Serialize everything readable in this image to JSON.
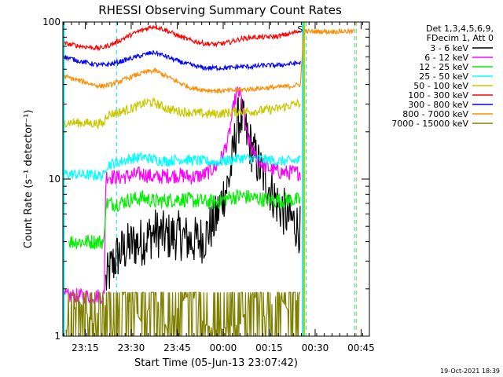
{
  "chart_data": {
    "type": "line",
    "title": "RHESSI Observing Summary Count Rates",
    "xlabel": "Start Time (05-Jun-13 23:07:42)",
    "ylabel": "Count Rate (s⁻¹ detector⁻¹)",
    "yscale": "log",
    "ylim": [
      1,
      100
    ],
    "xlim_minutes": [
      0,
      100
    ],
    "y_ticks": [
      {
        "value": 1,
        "label": "1"
      },
      {
        "value": 10,
        "label": "10"
      },
      {
        "value": 100,
        "label": "100"
      }
    ],
    "x_ticks": [
      {
        "minute": 7.3,
        "label": "23:15"
      },
      {
        "minute": 22.3,
        "label": "23:30"
      },
      {
        "minute": 37.3,
        "label": "23:45"
      },
      {
        "minute": 52.3,
        "label": "00:00"
      },
      {
        "minute": 67.3,
        "label": "00:15"
      },
      {
        "minute": 82.3,
        "label": "00:30"
      },
      {
        "minute": 97.3,
        "label": "00:45"
      }
    ],
    "vlines": [
      {
        "minute": 0.3,
        "color": "#00e5e5",
        "style": "solid"
      },
      {
        "minute": 17.5,
        "color": "#00e5e5",
        "style": "dashed"
      },
      {
        "minute": 78.3,
        "color": "#00e5e5",
        "style": "solid"
      },
      {
        "minute": 78.8,
        "color": "#c8c800",
        "style": "solid"
      },
      {
        "minute": 79.4,
        "color": "#00e5e5",
        "style": "dashed"
      },
      {
        "minute": 95.3,
        "color": "#00e5e5",
        "style": "dashed"
      },
      {
        "minute": 95.8,
        "color": "#c8c800",
        "style": "dashed"
      }
    ],
    "marker": {
      "text": "S",
      "minute": 76.5,
      "value": 90
    },
    "legend": {
      "position": "top-right",
      "header": [
        "Det 1,3,4,5,6,9,",
        "FDecim 1, Att 0"
      ],
      "entries": [
        {
          "label": "3 - 6 keV",
          "color": "#000000"
        },
        {
          "label": "6 - 12 keV",
          "color": "#ff00ff"
        },
        {
          "label": "12 - 25 keV",
          "color": "#00ee00"
        },
        {
          "label": "25 - 50 keV",
          "color": "#00ffff"
        },
        {
          "label": "50 - 100 keV",
          "color": "#c8c800"
        },
        {
          "label": "100 - 300 keV",
          "color": "#ff0000"
        },
        {
          "label": "300 - 800 keV",
          "color": "#0000ff"
        },
        {
          "label": "800 - 7000 keV",
          "color": "#ff8c00"
        },
        {
          "label": "7000 - 15000 keV",
          "color": "#808000"
        }
      ]
    },
    "series": [
      {
        "name": "3 - 6 keV",
        "color": "#000000",
        "points": [
          [
            14,
            2.2
          ],
          [
            16,
            2.8
          ],
          [
            18,
            3.3
          ],
          [
            22,
            3.8
          ],
          [
            26,
            4.0
          ],
          [
            30,
            4.6
          ],
          [
            34,
            4.3
          ],
          [
            38,
            4.4
          ],
          [
            42,
            4.0
          ],
          [
            46,
            4.2
          ],
          [
            50,
            5.6
          ],
          [
            52,
            7.6
          ],
          [
            54,
            9.5
          ],
          [
            55,
            12
          ],
          [
            56,
            17
          ],
          [
            57,
            23
          ],
          [
            58,
            25
          ],
          [
            59,
            22
          ],
          [
            60,
            19
          ],
          [
            62,
            15
          ],
          [
            64,
            12
          ],
          [
            66,
            10
          ],
          [
            68,
            8.4
          ],
          [
            70,
            7.0
          ],
          [
            72,
            6.2
          ],
          [
            74,
            5.6
          ],
          [
            76,
            5.2
          ],
          [
            77.5,
            4.7
          ]
        ]
      },
      {
        "name": "6 - 12 keV",
        "color": "#ff00ff",
        "points": [
          [
            0.5,
            1.8
          ],
          [
            13.5,
            1.8
          ],
          [
            14,
            10.5
          ],
          [
            18,
            10.2
          ],
          [
            22,
            10.5
          ],
          [
            26,
            10.8
          ],
          [
            30,
            10.2
          ],
          [
            34,
            10.5
          ],
          [
            38,
            10.6
          ],
          [
            42,
            10.3
          ],
          [
            46,
            10.6
          ],
          [
            50,
            12
          ],
          [
            52,
            14
          ],
          [
            54,
            18
          ],
          [
            55,
            24
          ],
          [
            56,
            31
          ],
          [
            57,
            36
          ],
          [
            58,
            34
          ],
          [
            59,
            26
          ],
          [
            60,
            19
          ],
          [
            62,
            15
          ],
          [
            64,
            13
          ],
          [
            66,
            12
          ],
          [
            68,
            11.5
          ],
          [
            70,
            11.2
          ],
          [
            72,
            11
          ],
          [
            74,
            11
          ],
          [
            77.5,
            11
          ]
        ]
      },
      {
        "name": "12 - 25 keV",
        "color": "#00ee00",
        "points": [
          [
            2,
            4.0
          ],
          [
            13.5,
            4.0
          ],
          [
            14,
            7.0
          ],
          [
            18,
            7.0
          ],
          [
            22,
            7.4
          ],
          [
            26,
            7.6
          ],
          [
            30,
            7.2
          ],
          [
            34,
            7.3
          ],
          [
            38,
            7.5
          ],
          [
            42,
            7.3
          ],
          [
            46,
            7.2
          ],
          [
            50,
            7.1
          ],
          [
            54,
            7.6
          ],
          [
            58,
            7.8
          ],
          [
            62,
            7.6
          ],
          [
            66,
            7.4
          ],
          [
            70,
            7.3
          ],
          [
            74,
            7.4
          ],
          [
            77.5,
            7.3
          ]
        ]
      },
      {
        "name": "25 - 50 keV",
        "color": "#00ffff",
        "points": [
          [
            0.5,
            10.8
          ],
          [
            13.5,
            10.5
          ],
          [
            14,
            12.2
          ],
          [
            18,
            12.8
          ],
          [
            22,
            13.5
          ],
          [
            26,
            13.8
          ],
          [
            30,
            13.3
          ],
          [
            34,
            13.0
          ],
          [
            38,
            13.4
          ],
          [
            42,
            13.2
          ],
          [
            46,
            13.0
          ],
          [
            50,
            12.8
          ],
          [
            54,
            13.2
          ],
          [
            58,
            13.6
          ],
          [
            62,
            13.5
          ],
          [
            66,
            13.3
          ],
          [
            70,
            13.0
          ],
          [
            74,
            13.0
          ],
          [
            77.5,
            13.2
          ]
        ]
      },
      {
        "name": "50 - 100 keV",
        "color": "#c8c800",
        "points": [
          [
            0.5,
            23
          ],
          [
            13.5,
            22.5
          ],
          [
            14,
            25.5
          ],
          [
            18,
            26.5
          ],
          [
            22,
            28
          ],
          [
            26,
            30
          ],
          [
            28,
            31
          ],
          [
            30,
            30.5
          ],
          [
            34,
            28
          ],
          [
            38,
            27
          ],
          [
            42,
            26.5
          ],
          [
            46,
            26
          ],
          [
            50,
            26
          ],
          [
            54,
            26.5
          ],
          [
            58,
            27
          ],
          [
            62,
            27
          ],
          [
            66,
            27.5
          ],
          [
            70,
            28
          ],
          [
            74,
            29.5
          ],
          [
            77.5,
            30.5
          ]
        ]
      },
      {
        "name": "100 - 300 keV",
        "color": "#ff0000",
        "points": [
          [
            0.5,
            73
          ],
          [
            6,
            70
          ],
          [
            12,
            68
          ],
          [
            16,
            72
          ],
          [
            20,
            79
          ],
          [
            24,
            86
          ],
          [
            28,
            92
          ],
          [
            30,
            94
          ],
          [
            34,
            88
          ],
          [
            38,
            81
          ],
          [
            42,
            76
          ],
          [
            46,
            73
          ],
          [
            50,
            72
          ],
          [
            54,
            74
          ],
          [
            58,
            78
          ],
          [
            62,
            80
          ],
          [
            66,
            80
          ],
          [
            70,
            81
          ],
          [
            74,
            84
          ],
          [
            77.5,
            88
          ]
        ]
      },
      {
        "name": "300 - 800 keV",
        "color": "#0000ff",
        "points": [
          [
            0.5,
            60
          ],
          [
            6,
            56
          ],
          [
            12,
            53
          ],
          [
            16,
            54
          ],
          [
            20,
            57
          ],
          [
            24,
            60
          ],
          [
            28,
            63
          ],
          [
            30,
            64
          ],
          [
            34,
            60
          ],
          [
            38,
            56
          ],
          [
            42,
            53
          ],
          [
            46,
            51
          ],
          [
            50,
            51
          ],
          [
            54,
            51
          ],
          [
            58,
            52
          ],
          [
            62,
            52
          ],
          [
            66,
            53
          ],
          [
            70,
            53
          ],
          [
            74,
            54
          ],
          [
            77.5,
            55
          ]
        ]
      },
      {
        "name": "800 - 7000 keV",
        "color": "#ff8c00",
        "points": [
          [
            0.5,
            45
          ],
          [
            6,
            42
          ],
          [
            12,
            39
          ],
          [
            16,
            40
          ],
          [
            20,
            43
          ],
          [
            24,
            46
          ],
          [
            28,
            48.5
          ],
          [
            30,
            49
          ],
          [
            34,
            45
          ],
          [
            38,
            41
          ],
          [
            42,
            38
          ],
          [
            46,
            37
          ],
          [
            50,
            36.5
          ],
          [
            54,
            36.5
          ],
          [
            58,
            37
          ],
          [
            62,
            37.5
          ],
          [
            66,
            38
          ],
          [
            70,
            38.5
          ],
          [
            74,
            39
          ],
          [
            77.5,
            40
          ],
          [
            78.6,
            87
          ],
          [
            95,
            87
          ]
        ]
      },
      {
        "name": "7000 - 15000 keV",
        "color": "#808000",
        "points": [
          [
            1,
            1.1
          ],
          [
            5,
            1.7
          ],
          [
            10,
            1.2
          ],
          [
            13,
            1.8
          ],
          [
            16,
            1.1
          ],
          [
            20,
            1.9
          ],
          [
            26,
            1.2
          ],
          [
            30,
            1.9
          ],
          [
            34,
            1.1
          ],
          [
            38,
            1.6
          ],
          [
            42,
            1.9
          ],
          [
            46,
            1.2
          ],
          [
            50,
            1.1
          ],
          [
            58,
            1.2
          ],
          [
            62,
            1.9
          ],
          [
            66,
            1.3
          ],
          [
            70,
            1.9
          ],
          [
            74,
            1.4
          ],
          [
            77.5,
            1.9
          ]
        ]
      }
    ]
  },
  "footer": {
    "timestamp": "19-Oct-2021 18:39"
  }
}
